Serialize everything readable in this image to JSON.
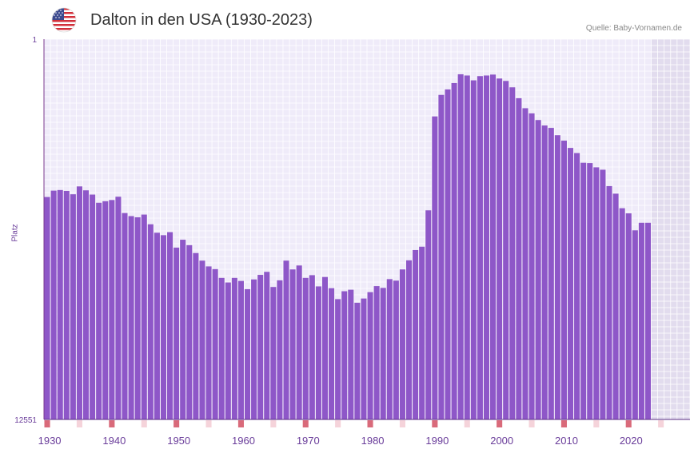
{
  "header": {
    "title": "Dalton in den USA (1930-2023)",
    "source": "Quelle: Baby-Vornamen.de",
    "flag_icon": "us-flag-icon"
  },
  "colors": {
    "bar": "#8e57c8",
    "plot_bg": "#efebf9",
    "grid": "#ffffff",
    "future_bg": "#e2dcee",
    "axis": "#7b3a8f",
    "tick_label": "#6a3d9a",
    "decade_marker": "#d96a7a",
    "year_marker": "#f5d3da"
  },
  "chart_data": {
    "type": "bar",
    "title": "Dalton in den USA (1930-2023)",
    "xlabel": "",
    "ylabel": "Platz",
    "y_inverted": true,
    "ylim": [
      1,
      12551
    ],
    "y_tick_labels": [
      "1",
      "12551"
    ],
    "x_tick_labels": [
      "1930",
      "1940",
      "1950",
      "1960",
      "1970",
      "1980",
      "1990",
      "2000",
      "2010",
      "2020"
    ],
    "x_range": [
      1929,
      2029
    ],
    "data_end_year": 2022,
    "years": [
      1929,
      1930,
      1931,
      1932,
      1933,
      1934,
      1935,
      1936,
      1937,
      1938,
      1939,
      1940,
      1941,
      1942,
      1943,
      1944,
      1945,
      1946,
      1947,
      1948,
      1949,
      1950,
      1951,
      1952,
      1953,
      1954,
      1955,
      1956,
      1957,
      1958,
      1959,
      1960,
      1961,
      1962,
      1963,
      1964,
      1965,
      1966,
      1967,
      1968,
      1969,
      1970,
      1971,
      1972,
      1973,
      1974,
      1975,
      1976,
      1977,
      1978,
      1979,
      1980,
      1981,
      1982,
      1983,
      1984,
      1985,
      1986,
      1987,
      1988,
      1989,
      1990,
      1991,
      1992,
      1993,
      1994,
      1995,
      1996,
      1997,
      1998,
      1999,
      2000,
      2001,
      2002,
      2003,
      2004,
      2005,
      2006,
      2007,
      2008,
      2009,
      2010,
      2011,
      2012,
      2013,
      2014,
      2015,
      2016,
      2017,
      2018,
      2019,
      2020,
      2021,
      2022
    ],
    "values": [
      5210,
      5000,
      4980,
      5010,
      5120,
      4860,
      4990,
      5130,
      5400,
      5350,
      5310,
      5200,
      5740,
      5840,
      5880,
      5790,
      6110,
      6390,
      6470,
      6370,
      6880,
      6620,
      6800,
      7060,
      7310,
      7500,
      7590,
      7880,
      8030,
      7880,
      7980,
      8250,
      7930,
      7780,
      7680,
      8180,
      7960,
      7310,
      7600,
      7470,
      7880,
      7790,
      8160,
      7850,
      8220,
      8580,
      8320,
      8270,
      8700,
      8560,
      8350,
      8150,
      8210,
      7920,
      7970,
      7600,
      7300,
      6960,
      6850,
      5650,
      2550,
      1840,
      1660,
      1450,
      1160,
      1200,
      1360,
      1220,
      1200,
      1170,
      1300,
      1380,
      1590,
      1950,
      2280,
      2450,
      2670,
      2850,
      2930,
      3170,
      3350,
      3590,
      3760,
      4080,
      4090,
      4230,
      4310,
      4850,
      5100,
      5580,
      5750,
      6310,
      6060,
      6060
    ]
  }
}
